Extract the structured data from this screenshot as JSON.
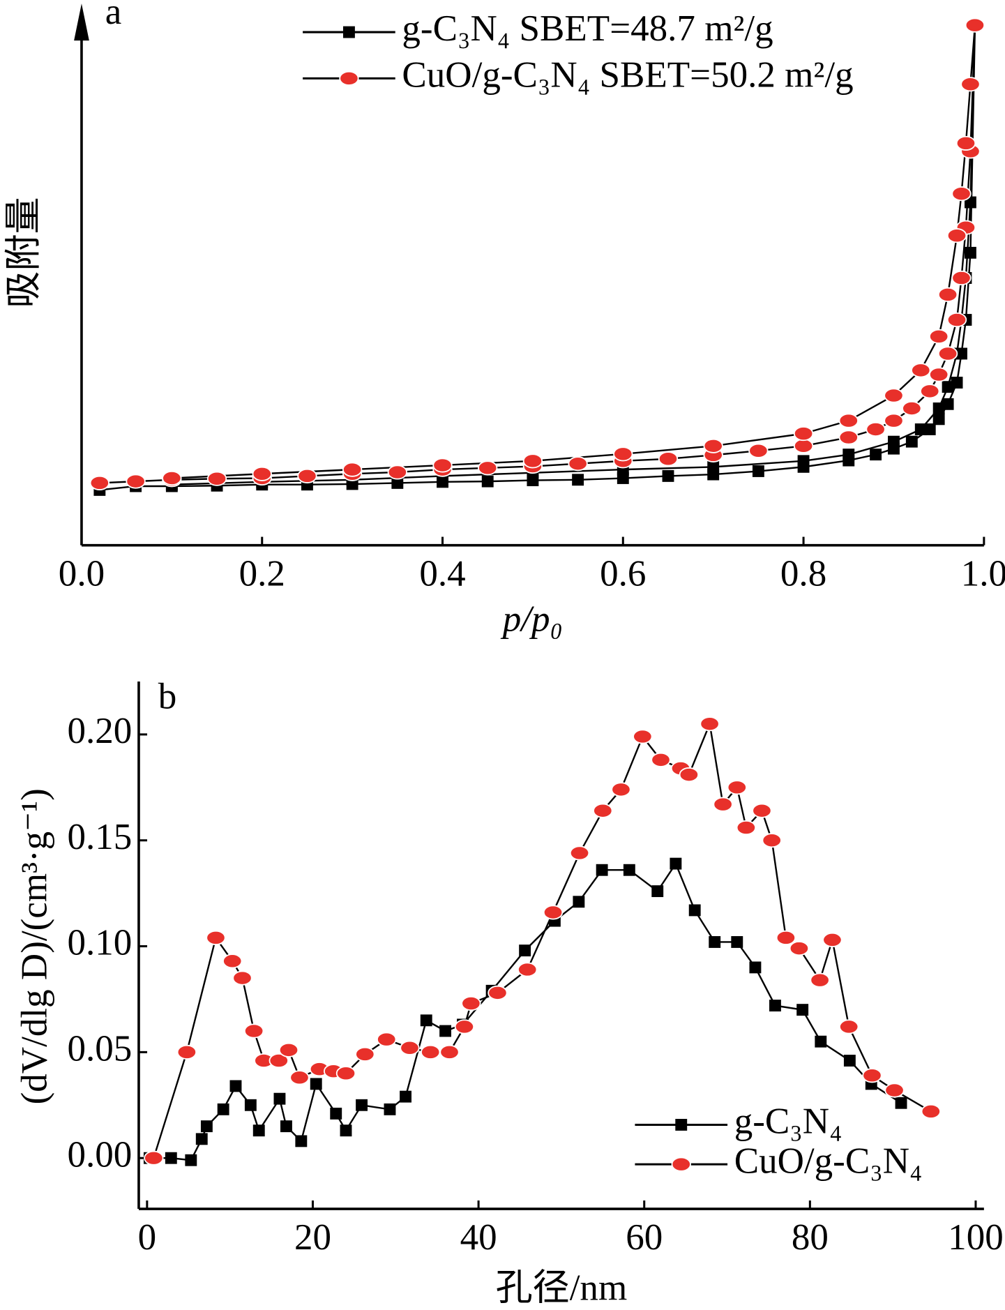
{
  "chart_data": [
    {
      "type": "line",
      "annotation": "a",
      "ylabel": "吸附量",
      "xlabel": "p/p₀",
      "xlim": [
        0,
        1
      ],
      "xticks": [
        {
          "value": 0,
          "label": "0.0"
        },
        {
          "value": 0.2,
          "label": "0.2"
        },
        {
          "value": 0.4,
          "label": "0.4"
        },
        {
          "value": 0.6,
          "label": "0.6"
        },
        {
          "value": 0.8,
          "label": "0.8"
        },
        {
          "value": 1,
          "label": "1.0"
        }
      ],
      "ylim": [
        0,
        100
      ],
      "legend": "upper right",
      "series": [
        {
          "name": "g-C₃N₄   SBET=48.7 m²/g",
          "color": "#000000",
          "marker": "square",
          "x": [
            0.02,
            0.06,
            0.1,
            0.15,
            0.2,
            0.25,
            0.3,
            0.35,
            0.4,
            0.45,
            0.5,
            0.55,
            0.6,
            0.65,
            0.7,
            0.75,
            0.8,
            0.85,
            0.88,
            0.9,
            0.92,
            0.94,
            0.95,
            0.96,
            0.97,
            0.975,
            0.98,
            0.985,
            0.99,
            0.985,
            0.98,
            0.975,
            0.97,
            0.96,
            0.95,
            0.93,
            0.9,
            0.85,
            0.8,
            0.7,
            0.6,
            0.5,
            0.4,
            0.3,
            0.2,
            0.1
          ],
          "values": [
            10.3,
            11.0,
            11.0,
            11.1,
            11.3,
            11.3,
            11.4,
            11.6,
            11.8,
            11.9,
            12.1,
            12.2,
            12.5,
            12.9,
            13.2,
            13.8,
            14.6,
            15.8,
            16.9,
            18.0,
            19.3,
            21.6,
            23.5,
            26.3,
            30.3,
            35.7,
            42.0,
            54.5,
            96.9,
            63.9,
            49.8,
            42.0,
            35.7,
            29.5,
            25.5,
            21.6,
            19.3,
            16.9,
            15.7,
            14.6,
            14.1,
            13.5,
            12.9,
            12.2,
            11.8,
            11.3
          ]
        },
        {
          "name": "CuO/g-C₃N₄   SBET=50.2 m²/g",
          "color": "#e8302a",
          "marker": "circle",
          "x": [
            0.02,
            0.06,
            0.1,
            0.15,
            0.2,
            0.25,
            0.3,
            0.35,
            0.4,
            0.45,
            0.5,
            0.55,
            0.6,
            0.65,
            0.7,
            0.75,
            0.8,
            0.85,
            0.88,
            0.9,
            0.92,
            0.94,
            0.95,
            0.96,
            0.97,
            0.975,
            0.98,
            0.985,
            0.99,
            0.985,
            0.98,
            0.975,
            0.97,
            0.96,
            0.95,
            0.93,
            0.9,
            0.85,
            0.8,
            0.7,
            0.6,
            0.5,
            0.4,
            0.3,
            0.2,
            0.1
          ],
          "values": [
            11.6,
            11.9,
            12.2,
            12.4,
            12.5,
            12.9,
            13.3,
            13.6,
            14.1,
            14.4,
            14.7,
            15.2,
            15.7,
            16.1,
            16.8,
            17.6,
            18.5,
            20.1,
            21.6,
            23.2,
            25.5,
            28.7,
            31.8,
            35.7,
            42.0,
            49.8,
            59.2,
            73.4,
            96.9,
            85.9,
            74.9,
            65.5,
            57.7,
            46.7,
            38.9,
            32.6,
            27.9,
            23.2,
            20.8,
            18.5,
            17.0,
            15.7,
            14.9,
            14.1,
            13.3,
            12.5
          ]
        }
      ]
    },
    {
      "type": "line",
      "annotation": "b",
      "ylabel": "(dV/dlg D)/(cm³·g⁻¹)",
      "xlabel": "孔径/nm",
      "xlim": [
        -1,
        101
      ],
      "xticks": [
        0,
        20,
        40,
        60,
        80,
        100
      ],
      "ylim": [
        -0.024,
        0.225
      ],
      "yticks": [
        {
          "value": 0,
          "label": "0.00"
        },
        {
          "value": 0.05,
          "label": "0.05"
        },
        {
          "value": 0.1,
          "label": "0.10"
        },
        {
          "value": 0.15,
          "label": "0.15"
        },
        {
          "value": 0.2,
          "label": "0.20"
        }
      ],
      "legend": "lower right",
      "series": [
        {
          "name": "g-C₃N₄",
          "color": "#000000",
          "marker": "square",
          "x": [
            0.3,
            2.9,
            5.3,
            6.6,
            7.2,
            9.2,
            10.7,
            12.5,
            13.5,
            16.0,
            16.8,
            18.6,
            20.4,
            22.8,
            24.0,
            25.9,
            29.3,
            31.2,
            33.7,
            36.0,
            38.1,
            41.6,
            45.6,
            49.2,
            52.1,
            54.9,
            58.2,
            61.6,
            63.8,
            66.1,
            68.5,
            71.2,
            73.4,
            75.8,
            79.1,
            81.3,
            84.8,
            87.4,
            91.0
          ],
          "values": [
            0,
            0,
            -0.001,
            0.009,
            0.015,
            0.023,
            0.034,
            0.025,
            0.013,
            0.028,
            0.015,
            0.008,
            0.035,
            0.021,
            0.013,
            0.025,
            0.023,
            0.029,
            0.065,
            0.06,
            0.063,
            0.079,
            0.098,
            0.112,
            0.121,
            0.136,
            0.136,
            0.126,
            0.139,
            0.117,
            0.102,
            0.102,
            0.09,
            0.072,
            0.07,
            0.055,
            0.046,
            0.035,
            0.026
          ]
        },
        {
          "name": "CuO/g-C₃N₄",
          "color": "#e8302a",
          "marker": "circle",
          "x": [
            0.8,
            4.8,
            8.3,
            10.3,
            11.5,
            12.9,
            14.1,
            15.9,
            17.1,
            18.4,
            20.8,
            22.5,
            24.0,
            26.3,
            28.9,
            31.7,
            34.2,
            36.5,
            38.3,
            39.1,
            42.3,
            45.9,
            49.0,
            52.2,
            55.0,
            57.2,
            59.8,
            62.0,
            64.4,
            65.4,
            67.9,
            69.5,
            71.2,
            72.3,
            74.2,
            75.4,
            77.1,
            78.7,
            81.2,
            82.7,
            84.7,
            87.5,
            90.2,
            94.6
          ],
          "values": [
            0,
            0.05,
            0.104,
            0.093,
            0.085,
            0.06,
            0.046,
            0.046,
            0.051,
            0.038,
            0.042,
            0.041,
            0.04,
            0.049,
            0.056,
            0.052,
            0.05,
            0.05,
            0.062,
            0.073,
            0.078,
            0.089,
            0.116,
            0.144,
            0.164,
            0.174,
            0.199,
            0.188,
            0.184,
            0.181,
            0.205,
            0.167,
            0.175,
            0.156,
            0.164,
            0.15,
            0.104,
            0.099,
            0.084,
            0.103,
            0.062,
            0.039,
            0.032,
            0.022
          ]
        }
      ]
    }
  ]
}
